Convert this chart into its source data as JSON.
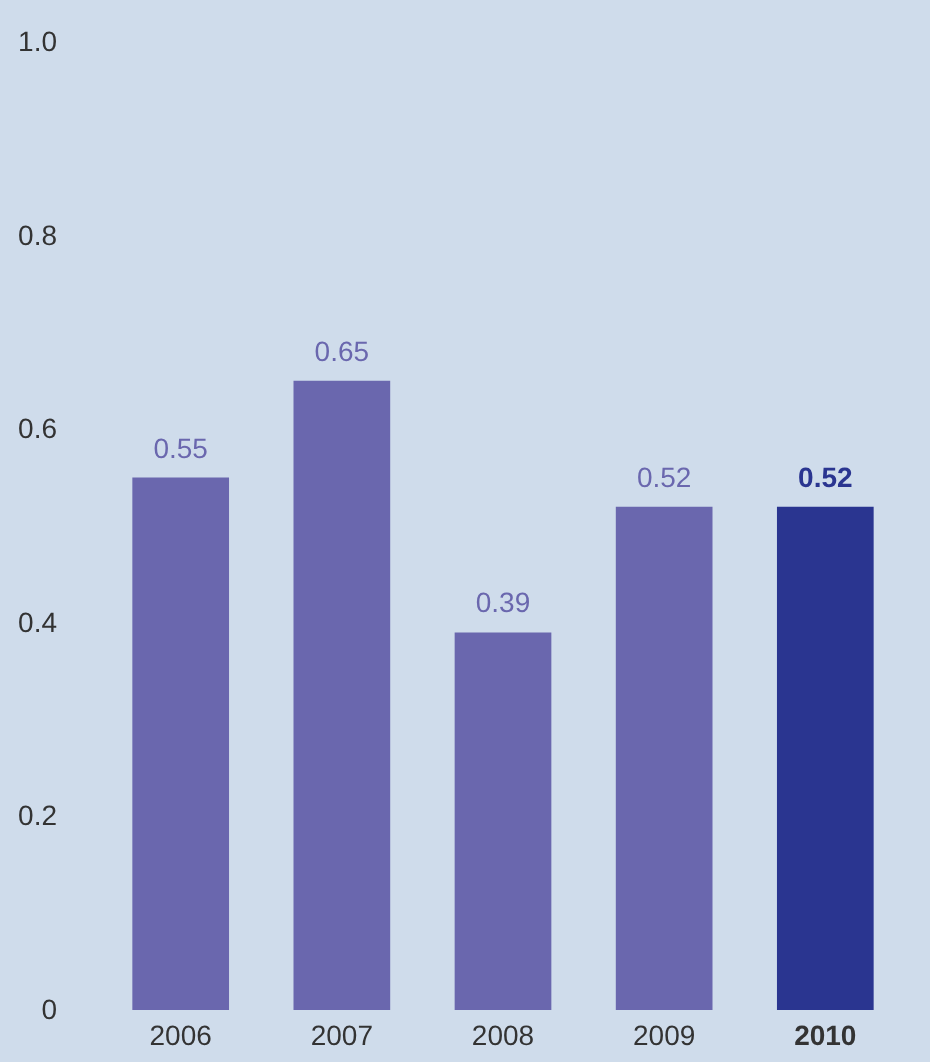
{
  "chart_data": {
    "type": "bar",
    "categories": [
      "2006",
      "2007",
      "2008",
      "2009",
      "2010"
    ],
    "values": [
      0.55,
      0.65,
      0.39,
      0.52,
      0.52
    ],
    "colors": [
      "#6a67ae",
      "#6a67ae",
      "#6a67ae",
      "#6a67ae",
      "#2a3590"
    ],
    "ylim": [
      0,
      1.0
    ],
    "yticks": [
      0,
      {
        "value": 0.2,
        "label": "0.2"
      },
      {
        "value": 0.4,
        "label": "0.4"
      },
      {
        "value": 0.6,
        "label": "0.6"
      },
      {
        "value": 0.8,
        "label": "0.8"
      },
      {
        "value": 1.0,
        "label": "1.0"
      }
    ],
    "grid": false,
    "data_labels": true
  }
}
